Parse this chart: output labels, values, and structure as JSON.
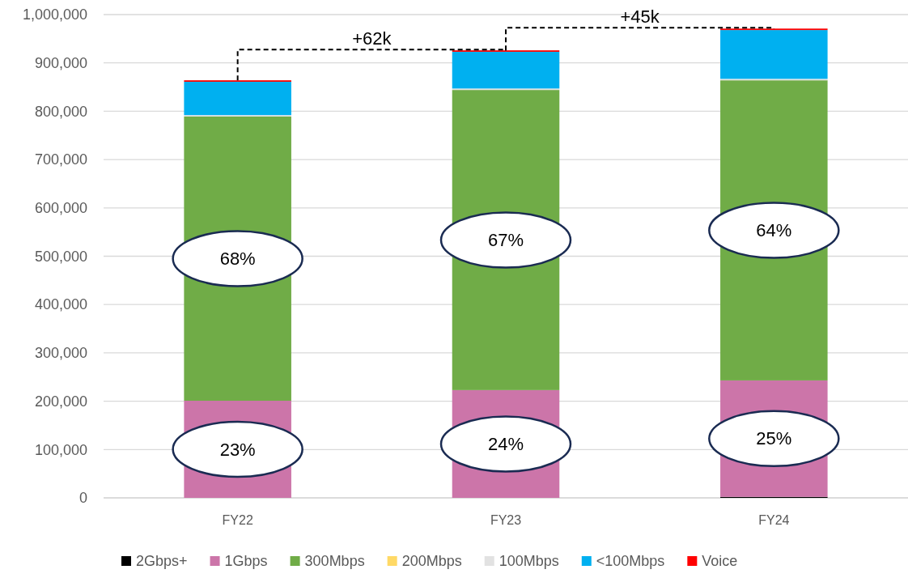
{
  "chart_data": {
    "type": "bar",
    "stacked": true,
    "categories": [
      "FY22",
      "FY23",
      "FY24"
    ],
    "series": [
      {
        "name": "2Gbps+",
        "color": "#000000",
        "values": [
          0,
          0,
          2000
        ]
      },
      {
        "name": "1Gbps",
        "color": "#cc75a9",
        "values": [
          201000,
          223000,
          241000
        ]
      },
      {
        "name": "300Mbps",
        "color": "#70ac47",
        "values": [
          588000,
          621000,
          621000
        ]
      },
      {
        "name": "200Mbps",
        "color": "#ffd966",
        "values": [
          0,
          0,
          0
        ]
      },
      {
        "name": "100Mbps",
        "color": "#e2e2e2",
        "values": [
          3000,
          3000,
          3000
        ]
      },
      {
        "name": "<100Mbps",
        "color": "#00b0f0",
        "values": [
          69000,
          76000,
          101000
        ]
      },
      {
        "name": "Voice",
        "color": "#ff0000",
        "values": [
          3000,
          3000,
          3000
        ]
      }
    ],
    "ylim": [
      0,
      1000000
    ],
    "yticks": [
      {
        "value": 0,
        "label": "0"
      },
      {
        "value": 100000,
        "label": "100,000"
      },
      {
        "value": 200000,
        "label": "200,000"
      },
      {
        "value": 300000,
        "label": "300,000"
      },
      {
        "value": 400000,
        "label": "400,000"
      },
      {
        "value": 500000,
        "label": "500,000"
      },
      {
        "value": 600000,
        "label": "600,000"
      },
      {
        "value": 700000,
        "label": "700,000"
      },
      {
        "value": 800000,
        "label": "800,000"
      },
      {
        "value": 900000,
        "label": "900,000"
      },
      {
        "value": 1000000,
        "label": "1,000,000"
      }
    ],
    "grid": "y",
    "legend": "bottom",
    "annotations": [
      "68%",
      "67%",
      "64%",
      "23%",
      "24%",
      "25%",
      "+62k",
      "+45k"
    ]
  }
}
